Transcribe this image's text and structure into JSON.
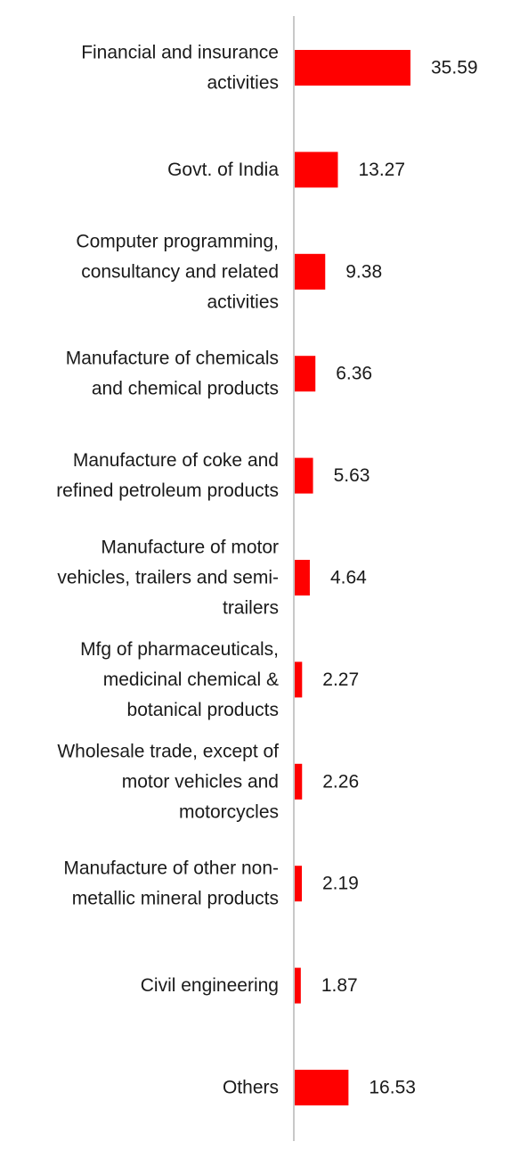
{
  "chart_data": {
    "type": "bar",
    "orientation": "horizontal",
    "categories": [
      [
        "Financial and insurance",
        "activities"
      ],
      [
        "Govt. of India"
      ],
      [
        "Computer programming,",
        "consultancy and related",
        "activities"
      ],
      [
        "Manufacture of chemicals",
        "and chemical products"
      ],
      [
        "Manufacture of coke and",
        "refined petroleum products"
      ],
      [
        "Manufacture of motor",
        "vehicles, trailers and semi-",
        "trailers"
      ],
      [
        "Mfg of pharmaceuticals,",
        "medicinal chemical &",
        "botanical products"
      ],
      [
        "Wholesale trade, except of",
        "motor vehicles and",
        "motorcycles"
      ],
      [
        "Manufacture of other non-",
        "metallic mineral products"
      ],
      [
        "Civil engineering"
      ],
      [
        "Others"
      ]
    ],
    "values": [
      35.59,
      13.27,
      9.38,
      6.36,
      5.63,
      4.64,
      2.27,
      2.26,
      2.19,
      1.87,
      16.53
    ],
    "value_labels": [
      "35.59",
      "13.27",
      "9.38",
      "6.36",
      "5.63",
      "4.64",
      "2.27",
      "2.26",
      "2.19",
      "1.87",
      "16.53"
    ],
    "bar_color": "#ff0000",
    "axis_color": "#c8c8c8",
    "title": "",
    "xlabel": "",
    "ylabel": "",
    "xlim": [
      0,
      100
    ],
    "grid": false,
    "legend": "none",
    "data_labels": true
  }
}
